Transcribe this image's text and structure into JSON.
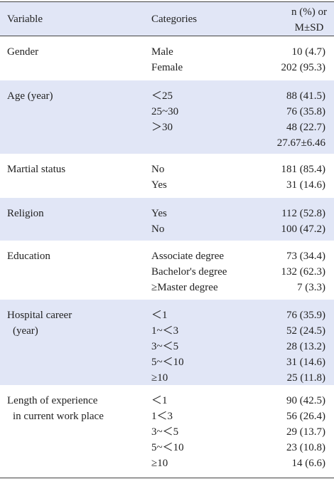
{
  "table": {
    "header": {
      "variable": "Variable",
      "categories": "Categories",
      "values": [
        "n (%) or",
        "M±SD"
      ]
    },
    "rows": [
      {
        "variable": [
          "Gender"
        ],
        "categories": [
          "Male",
          "Female"
        ],
        "values": [
          "10 (4.7)",
          "202 (95.3)"
        ]
      },
      {
        "variable": [
          "Age (year)"
        ],
        "categories": [
          "＜25",
          "25~30",
          "＞30",
          null
        ],
        "values": [
          "88 (41.5)",
          "76 (35.8)",
          "48 (22.7)",
          "27.67±6.46"
        ]
      },
      {
        "variable": [
          "Martial status"
        ],
        "categories": [
          "No",
          "Yes"
        ],
        "values": [
          "181 (85.4)",
          "31 (14.6)"
        ]
      },
      {
        "variable": [
          "Religion"
        ],
        "categories": [
          "Yes",
          "No"
        ],
        "values": [
          "112 (52.8)",
          "100 (47.2)"
        ]
      },
      {
        "variable": [
          "Education"
        ],
        "categories": [
          "Associate degree",
          "Bachelor's degree",
          "≥Master degree"
        ],
        "values": [
          "73 (34.4)",
          "132 (62.3)",
          "7 (3.3)"
        ]
      },
      {
        "variable": [
          "Hospital career",
          "(year)"
        ],
        "categories": [
          "＜1",
          "1~＜3",
          "3~＜5",
          "5~＜10",
          "≥10"
        ],
        "values": [
          "76 (35.9)",
          "52 (24.5)",
          "28 (13.2)",
          "31 (14.6)",
          "25 (11.8)"
        ]
      },
      {
        "variable": [
          "Length of experience",
          "in current work place"
        ],
        "categories": [
          "＜1",
          "1＜3",
          "3~＜5",
          "5~＜10",
          "≥10"
        ],
        "values": [
          "90 (42.5)",
          "56 (26.4)",
          "29 (13.7)",
          "23 (10.8)",
          "14 (6.6)"
        ]
      }
    ]
  }
}
